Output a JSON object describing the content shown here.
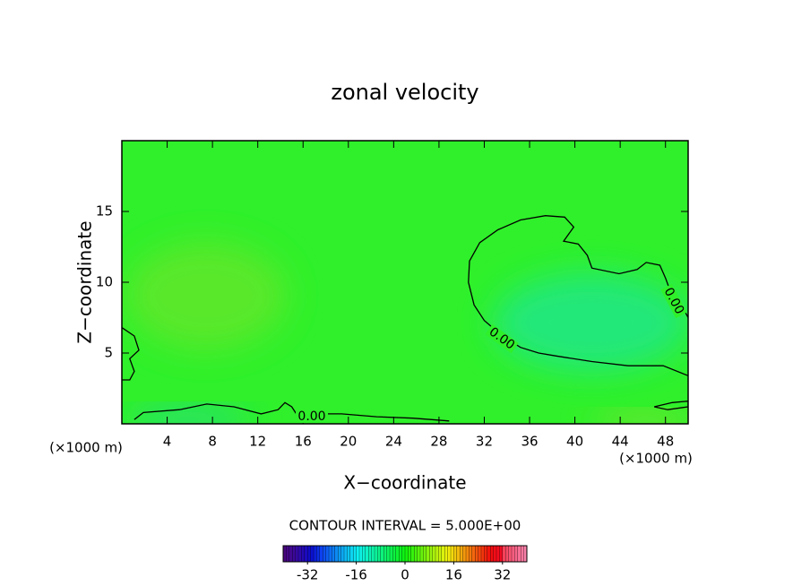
{
  "chart_data": {
    "type": "contour",
    "title": "zonal velocity",
    "x_label": "X−coordinate",
    "y_label": "Z−coordinate",
    "x_unit": "(×1000 m)",
    "y_unit": "(×1000 m)",
    "xlim": [
      0,
      50
    ],
    "xticks": [
      4,
      8,
      12,
      16,
      20,
      24,
      28,
      32,
      36,
      40,
      44,
      48
    ],
    "ylim": [
      0,
      20
    ],
    "yticks": [
      5,
      10,
      15
    ],
    "contour_interval_label": "CONTOUR INTERVAL = 5.000E+00",
    "colorbar": {
      "lim": [
        -40,
        40
      ],
      "ticks": [
        -32,
        -16,
        0,
        16,
        32
      ]
    },
    "contours": [
      {
        "level": 0,
        "label": "0.00",
        "lines": [
          {
            "x": [
              50,
              47.8,
              44.7,
              41.5,
              38.3,
              36.8,
              35.2,
              33.6,
              32.0,
              31.1,
              30.6,
              30.7,
              31.6,
              33.2,
              35.2,
              37.4,
              39.1,
              39.9,
              39.0,
              40.3,
              41.1,
              41.5,
              43.9,
              45.5,
              46.3,
              47.5,
              48.0,
              48.6,
              49.6,
              50
            ],
            "y": [
              3.4,
              4.1,
              4.1,
              4.4,
              4.8,
              5.0,
              5.4,
              6.2,
              7.3,
              8.4,
              10.0,
              11.5,
              12.8,
              13.7,
              14.4,
              14.7,
              14.6,
              13.9,
              12.9,
              12.7,
              11.9,
              11.0,
              10.6,
              10.9,
              11.4,
              11.2,
              10.3,
              9.0,
              8.1,
              7.5
            ]
          },
          {
            "x": [
              0,
              1.1,
              1.5,
              0.7,
              1.1,
              0.7,
              0
            ],
            "y": [
              6.8,
              6.2,
              5.2,
              4.6,
              3.7,
              3.1,
              3.1
            ]
          },
          {
            "x": [
              1.1,
              1.9,
              5.1,
              7.5,
              9.9,
              12.3,
              13.8,
              14.4,
              15.0,
              15.4,
              19.4,
              22.5,
              25.7,
              28.9
            ],
            "y": [
              0.3,
              0.8,
              1.0,
              1.4,
              1.2,
              0.7,
              1.0,
              1.5,
              1.2,
              0.7,
              0.7,
              0.5,
              0.4,
              0.2
            ]
          },
          {
            "x": [
              47.0,
              48.6,
              50,
              50,
              48.2,
              47.0
            ],
            "y": [
              1.2,
              1.5,
              1.6,
              1.2,
              1.0,
              1.2
            ]
          }
        ]
      }
    ]
  }
}
